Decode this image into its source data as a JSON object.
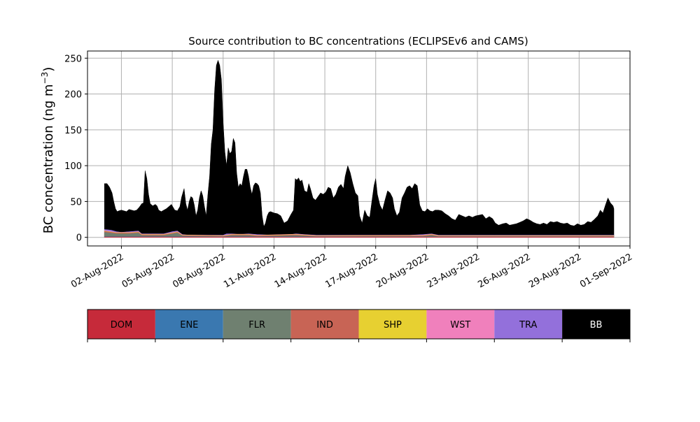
{
  "chart_data": {
    "type": "area",
    "title": "Source contribution to BC concentrations (ECLIPSEv6 and CAMS)",
    "ylabel_main": "BC concentration (ng m",
    "ylabel_exp": "−3",
    "ylabel_close": ")",
    "xlabel": "",
    "ylim": [
      -12,
      260
    ],
    "yticks": [
      0,
      50,
      100,
      150,
      200,
      250
    ],
    "grid": true,
    "x_start": "2022-07-31",
    "x_tick_labels": [
      "02-Aug-2022",
      "05-Aug-2022",
      "08-Aug-2022",
      "11-Aug-2022",
      "14-Aug-2022",
      "17-Aug-2022",
      "20-Aug-2022",
      "23-Aug-2022",
      "26-Aug-2022",
      "29-Aug-2022",
      "01-Sep-2022"
    ],
    "legend": [
      {
        "name": "DOM",
        "color": "#c62a3a"
      },
      {
        "name": "ENE",
        "color": "#3a78b0"
      },
      {
        "name": "FLR",
        "color": "#6f8070"
      },
      {
        "name": "IND",
        "color": "#c86455"
      },
      {
        "name": "SHP",
        "color": "#e7d031"
      },
      {
        "name": "WST",
        "color": "#f080bc"
      },
      {
        "name": "TRA",
        "color": "#9370db"
      },
      {
        "name": "BB",
        "color": "#000000"
      }
    ],
    "total_series": {
      "name": "BB",
      "points": [
        [
          1.0,
          75
        ],
        [
          1.15,
          75
        ],
        [
          1.3,
          70
        ],
        [
          1.45,
          62
        ],
        [
          1.55,
          50
        ],
        [
          1.65,
          40
        ],
        [
          1.75,
          36
        ],
        [
          1.85,
          37
        ],
        [
          2.0,
          38
        ],
        [
          2.15,
          37
        ],
        [
          2.3,
          36
        ],
        [
          2.45,
          39
        ],
        [
          2.6,
          38
        ],
        [
          2.75,
          37
        ],
        [
          2.9,
          38
        ],
        [
          3.05,
          42
        ],
        [
          3.2,
          47
        ],
        [
          3.3,
          48
        ],
        [
          3.4,
          93
        ],
        [
          3.5,
          82
        ],
        [
          3.6,
          60
        ],
        [
          3.7,
          47
        ],
        [
          3.85,
          44
        ],
        [
          4.0,
          46
        ],
        [
          4.1,
          44
        ],
        [
          4.2,
          38
        ],
        [
          4.35,
          36
        ],
        [
          4.5,
          38
        ],
        [
          4.65,
          40
        ],
        [
          4.8,
          43
        ],
        [
          4.95,
          46
        ],
        [
          5.05,
          42
        ],
        [
          5.15,
          38
        ],
        [
          5.3,
          37
        ],
        [
          5.45,
          43
        ],
        [
          5.55,
          56
        ],
        [
          5.7,
          68
        ],
        [
          5.8,
          47
        ],
        [
          5.9,
          38
        ],
        [
          6.0,
          50
        ],
        [
          6.1,
          57
        ],
        [
          6.2,
          55
        ],
        [
          6.3,
          45
        ],
        [
          6.4,
          30
        ],
        [
          6.5,
          38
        ],
        [
          6.6,
          55
        ],
        [
          6.7,
          65
        ],
        [
          6.8,
          58
        ],
        [
          6.9,
          43
        ],
        [
          7.0,
          30
        ],
        [
          7.1,
          60
        ],
        [
          7.2,
          85
        ],
        [
          7.3,
          130
        ],
        [
          7.4,
          150
        ],
        [
          7.5,
          205
        ],
        [
          7.6,
          240
        ],
        [
          7.7,
          247
        ],
        [
          7.8,
          240
        ],
        [
          7.9,
          220
        ],
        [
          8.0,
          160
        ],
        [
          8.1,
          120
        ],
        [
          8.2,
          100
        ],
        [
          8.3,
          125
        ],
        [
          8.4,
          117
        ],
        [
          8.5,
          120
        ],
        [
          8.6,
          138
        ],
        [
          8.7,
          132
        ],
        [
          8.8,
          90
        ],
        [
          8.9,
          70
        ],
        [
          9.0,
          75
        ],
        [
          9.1,
          72
        ],
        [
          9.2,
          85
        ],
        [
          9.3,
          95
        ],
        [
          9.4,
          95
        ],
        [
          9.5,
          85
        ],
        [
          9.6,
          70
        ],
        [
          9.7,
          60
        ],
        [
          9.8,
          72
        ],
        [
          9.9,
          76
        ],
        [
          10.0,
          75
        ],
        [
          10.1,
          72
        ],
        [
          10.2,
          62
        ],
        [
          10.3,
          30
        ],
        [
          10.4,
          15
        ],
        [
          10.5,
          20
        ],
        [
          10.6,
          30
        ],
        [
          10.7,
          35
        ],
        [
          10.8,
          36
        ],
        [
          10.9,
          35
        ],
        [
          11.0,
          34
        ],
        [
          11.2,
          33
        ],
        [
          11.4,
          30
        ],
        [
          11.6,
          20
        ],
        [
          11.8,
          23
        ],
        [
          12.0,
          32
        ],
        [
          12.15,
          38
        ],
        [
          12.25,
          82
        ],
        [
          12.35,
          80
        ],
        [
          12.45,
          83
        ],
        [
          12.55,
          78
        ],
        [
          12.65,
          80
        ],
        [
          12.8,
          65
        ],
        [
          12.95,
          63
        ],
        [
          13.05,
          75
        ],
        [
          13.15,
          68
        ],
        [
          13.3,
          55
        ],
        [
          13.45,
          52
        ],
        [
          13.6,
          57
        ],
        [
          13.75,
          62
        ],
        [
          13.9,
          60
        ],
        [
          14.05,
          63
        ],
        [
          14.2,
          70
        ],
        [
          14.35,
          68
        ],
        [
          14.5,
          55
        ],
        [
          14.65,
          60
        ],
        [
          14.8,
          70
        ],
        [
          14.95,
          74
        ],
        [
          15.1,
          68
        ],
        [
          15.2,
          85
        ],
        [
          15.35,
          100
        ],
        [
          15.5,
          90
        ],
        [
          15.65,
          75
        ],
        [
          15.8,
          62
        ],
        [
          15.95,
          58
        ],
        [
          16.05,
          30
        ],
        [
          16.2,
          20
        ],
        [
          16.35,
          38
        ],
        [
          16.5,
          30
        ],
        [
          16.65,
          28
        ],
        [
          16.8,
          55
        ],
        [
          16.9,
          72
        ],
        [
          17.0,
          82
        ],
        [
          17.1,
          60
        ],
        [
          17.25,
          45
        ],
        [
          17.4,
          38
        ],
        [
          17.55,
          52
        ],
        [
          17.7,
          65
        ],
        [
          17.85,
          62
        ],
        [
          18.0,
          55
        ],
        [
          18.1,
          40
        ],
        [
          18.25,
          30
        ],
        [
          18.4,
          35
        ],
        [
          18.55,
          55
        ],
        [
          18.7,
          62
        ],
        [
          18.85,
          70
        ],
        [
          19.0,
          72
        ],
        [
          19.15,
          68
        ],
        [
          19.3,
          75
        ],
        [
          19.45,
          72
        ],
        [
          19.6,
          45
        ],
        [
          19.75,
          37
        ],
        [
          19.9,
          36
        ],
        [
          20.05,
          40
        ],
        [
          20.2,
          37
        ],
        [
          20.35,
          36
        ],
        [
          20.5,
          38
        ],
        [
          20.7,
          38
        ],
        [
          20.9,
          37
        ],
        [
          21.1,
          33
        ],
        [
          21.3,
          30
        ],
        [
          21.5,
          26
        ],
        [
          21.7,
          24
        ],
        [
          21.9,
          32
        ],
        [
          22.1,
          30
        ],
        [
          22.3,
          28
        ],
        [
          22.5,
          30
        ],
        [
          22.7,
          28
        ],
        [
          22.9,
          30
        ],
        [
          23.1,
          31
        ],
        [
          23.3,
          32
        ],
        [
          23.5,
          26
        ],
        [
          23.7,
          29
        ],
        [
          23.9,
          26
        ],
        [
          24.05,
          20
        ],
        [
          24.25,
          17
        ],
        [
          24.5,
          19
        ],
        [
          24.7,
          20
        ],
        [
          24.9,
          17
        ],
        [
          25.1,
          18
        ],
        [
          25.3,
          19
        ],
        [
          25.5,
          21
        ],
        [
          25.7,
          23
        ],
        [
          25.9,
          26
        ],
        [
          26.1,
          24
        ],
        [
          26.3,
          21
        ],
        [
          26.5,
          19
        ],
        [
          26.7,
          18
        ],
        [
          26.9,
          20
        ],
        [
          27.1,
          18
        ],
        [
          27.3,
          22
        ],
        [
          27.5,
          21
        ],
        [
          27.7,
          22
        ],
        [
          27.9,
          20
        ],
        [
          28.1,
          19
        ],
        [
          28.3,
          20
        ],
        [
          28.5,
          17
        ],
        [
          28.7,
          16
        ],
        [
          28.9,
          19
        ],
        [
          29.1,
          17
        ],
        [
          29.3,
          18
        ],
        [
          29.5,
          22
        ],
        [
          29.7,
          21
        ],
        [
          29.9,
          25
        ],
        [
          30.1,
          30
        ],
        [
          30.25,
          38
        ],
        [
          30.4,
          34
        ],
        [
          30.55,
          45
        ],
        [
          30.7,
          55
        ],
        [
          30.85,
          48
        ],
        [
          31.0,
          44
        ],
        [
          31.05,
          40
        ]
      ]
    },
    "minor_series": [
      {
        "name": "TRA",
        "color": "#9370db",
        "points": [
          [
            1.0,
            11
          ],
          [
            1.4,
            10
          ],
          [
            1.7,
            8
          ],
          [
            2.0,
            7
          ],
          [
            2.5,
            8
          ],
          [
            3.0,
            9
          ],
          [
            3.2,
            5
          ],
          [
            3.6,
            5
          ],
          [
            4.0,
            5
          ],
          [
            4.5,
            5
          ],
          [
            5.0,
            8
          ],
          [
            5.3,
            9
          ],
          [
            5.6,
            4
          ],
          [
            6.0,
            3
          ],
          [
            7.0,
            3
          ],
          [
            7.5,
            3
          ],
          [
            8.0,
            3
          ],
          [
            8.2,
            5
          ],
          [
            8.5,
            5
          ],
          [
            9.0,
            4
          ],
          [
            9.5,
            5
          ],
          [
            10.0,
            4
          ],
          [
            11.0,
            3
          ],
          [
            12.0,
            4
          ],
          [
            12.3,
            5
          ],
          [
            12.8,
            4
          ],
          [
            13.5,
            3
          ],
          [
            15.0,
            3
          ],
          [
            16.0,
            3
          ],
          [
            19.0,
            3
          ],
          [
            19.8,
            4
          ],
          [
            20.3,
            5
          ],
          [
            20.7,
            3
          ],
          [
            22.0,
            3
          ],
          [
            23.0,
            3
          ],
          [
            24.0,
            3
          ],
          [
            25.0,
            3
          ],
          [
            27.0,
            3
          ],
          [
            29.0,
            3
          ],
          [
            31.05,
            3
          ]
        ]
      },
      {
        "name": "WST",
        "color": "#f080bc",
        "points": [
          [
            1.0,
            9.5
          ],
          [
            1.7,
            7
          ],
          [
            2.5,
            7
          ],
          [
            3.0,
            8
          ],
          [
            3.2,
            4.5
          ],
          [
            4.5,
            4.5
          ],
          [
            5.3,
            8
          ],
          [
            5.6,
            3.5
          ],
          [
            8.0,
            2.5
          ],
          [
            8.5,
            4.5
          ],
          [
            9.5,
            4.5
          ],
          [
            10.0,
            3
          ],
          [
            12.3,
            4.5
          ],
          [
            13.5,
            2.5
          ],
          [
            19.8,
            3
          ],
          [
            20.3,
            4.5
          ],
          [
            20.7,
            2.5
          ],
          [
            31.05,
            2.5
          ]
        ]
      },
      {
        "name": "SHP",
        "color": "#e7d031",
        "points": [
          [
            1.0,
            9
          ],
          [
            1.7,
            6.5
          ],
          [
            2.5,
            6.5
          ],
          [
            3.0,
            7.5
          ],
          [
            3.2,
            4
          ],
          [
            4.5,
            4
          ],
          [
            5.3,
            7.5
          ],
          [
            5.6,
            3
          ],
          [
            8.0,
            2
          ],
          [
            8.5,
            4
          ],
          [
            9.5,
            4
          ],
          [
            10.0,
            2.5
          ],
          [
            12.3,
            4
          ],
          [
            13.5,
            2
          ],
          [
            19.8,
            2.5
          ],
          [
            20.3,
            4
          ],
          [
            20.7,
            2
          ],
          [
            31.05,
            2
          ]
        ]
      },
      {
        "name": "IND",
        "color": "#c86455",
        "points": [
          [
            1.0,
            8.5
          ],
          [
            1.7,
            6
          ],
          [
            2.5,
            6
          ],
          [
            3.0,
            7
          ],
          [
            3.2,
            3.5
          ],
          [
            4.5,
            3.5
          ],
          [
            5.3,
            7
          ],
          [
            5.6,
            2.5
          ],
          [
            8.0,
            1.5
          ],
          [
            8.5,
            3.5
          ],
          [
            9.5,
            3.5
          ],
          [
            10.0,
            2
          ],
          [
            12.3,
            3.5
          ],
          [
            13.5,
            1.5
          ],
          [
            19.8,
            2
          ],
          [
            20.3,
            3.5
          ],
          [
            20.7,
            1.5
          ],
          [
            31.05,
            1.5
          ]
        ]
      },
      {
        "name": "FLR",
        "color": "#6f8070",
        "points": [
          [
            1.0,
            7
          ],
          [
            1.7,
            5
          ],
          [
            2.5,
            5
          ],
          [
            3.0,
            6
          ],
          [
            3.2,
            2.5
          ],
          [
            4.5,
            2.5
          ],
          [
            5.3,
            6
          ],
          [
            5.6,
            1.8
          ],
          [
            8.0,
            1
          ],
          [
            8.5,
            2.5
          ],
          [
            9.5,
            2.5
          ],
          [
            10.0,
            1.2
          ],
          [
            12.3,
            2.5
          ],
          [
            13.5,
            1
          ],
          [
            19.8,
            1.2
          ],
          [
            20.3,
            2.5
          ],
          [
            20.7,
            1
          ],
          [
            31.05,
            1
          ]
        ]
      },
      {
        "name": "ENE",
        "color": "#3a78b0",
        "points": [
          [
            1.0,
            1
          ],
          [
            31.05,
            0.6
          ]
        ]
      },
      {
        "name": "DOM",
        "color": "#c62a3a",
        "points": [
          [
            1.0,
            0.6
          ],
          [
            31.05,
            0.4
          ]
        ]
      }
    ]
  }
}
